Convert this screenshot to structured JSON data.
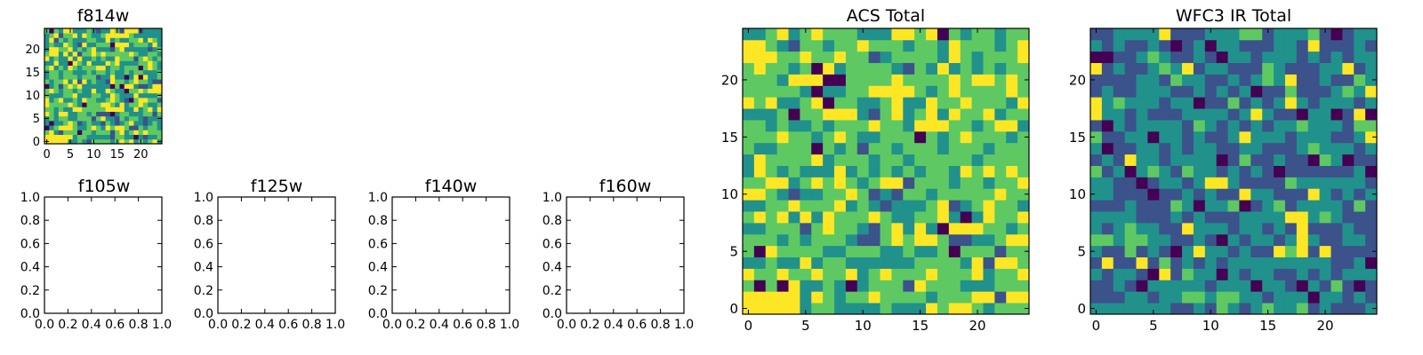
{
  "chart_data": [
    {
      "type": "heatmap",
      "title": "f814w",
      "xlabel": "",
      "ylabel": "",
      "xlim": [
        -0.5,
        24.5
      ],
      "ylim": [
        -0.5,
        24.5
      ],
      "xticks": [
        "0",
        "5",
        "10",
        "15",
        "20"
      ],
      "yticks": [
        "0",
        "5",
        "10",
        "15",
        "20"
      ],
      "colormap": "viridis",
      "grid_size": [
        25,
        25
      ],
      "bright_regions": [
        {
          "rows": [
            0,
            1
          ],
          "cols": [
            0,
            4
          ]
        }
      ]
    },
    {
      "type": "empty",
      "title": "f105w",
      "xlim": [
        0.0,
        1.0
      ],
      "ylim": [
        0.0,
        1.0
      ],
      "xticks": [
        "0.0",
        "0.2",
        "0.4",
        "0.6",
        "0.8",
        "1.0"
      ],
      "yticks": [
        "0.0",
        "0.2",
        "0.4",
        "0.6",
        "0.8",
        "1.0"
      ]
    },
    {
      "type": "empty",
      "title": "f125w",
      "xlim": [
        0.0,
        1.0
      ],
      "ylim": [
        0.0,
        1.0
      ],
      "xticks": [
        "0.0",
        "0.2",
        "0.4",
        "0.6",
        "0.8",
        "1.0"
      ],
      "yticks": [
        "0.0",
        "0.2",
        "0.4",
        "0.6",
        "0.8",
        "1.0"
      ]
    },
    {
      "type": "empty",
      "title": "f140w",
      "xlim": [
        0.0,
        1.0
      ],
      "ylim": [
        0.0,
        1.0
      ],
      "xticks": [
        "0.0",
        "0.2",
        "0.4",
        "0.6",
        "0.8",
        "1.0"
      ],
      "yticks": [
        "0.0",
        "0.2",
        "0.4",
        "0.6",
        "0.8",
        "1.0"
      ]
    },
    {
      "type": "empty",
      "title": "f160w",
      "xlim": [
        0.0,
        1.0
      ],
      "ylim": [
        0.0,
        1.0
      ],
      "xticks": [
        "0.0",
        "0.2",
        "0.4",
        "0.6",
        "0.8",
        "1.0"
      ],
      "yticks": [
        "0.0",
        "0.2",
        "0.4",
        "0.6",
        "0.8",
        "1.0"
      ]
    },
    {
      "type": "heatmap",
      "title": "ACS Total",
      "xlabel": "",
      "ylabel": "",
      "xlim": [
        -0.5,
        24.5
      ],
      "ylim": [
        -0.5,
        24.5
      ],
      "xticks": [
        "0",
        "5",
        "10",
        "15",
        "20"
      ],
      "yticks": [
        "0",
        "5",
        "10",
        "15",
        "20"
      ],
      "colormap": "viridis",
      "grid_size": [
        25,
        25
      ],
      "bright_regions": [
        {
          "rows": [
            0,
            1
          ],
          "cols": [
            0,
            4
          ]
        }
      ]
    },
    {
      "type": "heatmap",
      "title": "WFC3 IR Total",
      "xlabel": "",
      "ylabel": "",
      "xlim": [
        -0.5,
        24.5
      ],
      "ylim": [
        -0.5,
        24.5
      ],
      "xticks": [
        "0",
        "5",
        "10",
        "15",
        "20"
      ],
      "yticks": [
        "0",
        "5",
        "10",
        "15",
        "20"
      ],
      "colormap": "viridis",
      "grid_size": [
        25,
        25
      ],
      "bright_regions": [
        {
          "rows": [
            11,
            11
          ],
          "cols": [
            10,
            11
          ]
        },
        {
          "rows": [
            5,
            8
          ],
          "cols": [
            18,
            18
          ]
        }
      ]
    }
  ],
  "palette": [
    "#440154",
    "#3b528b",
    "#21918c",
    "#5ec962",
    "#fde725"
  ]
}
